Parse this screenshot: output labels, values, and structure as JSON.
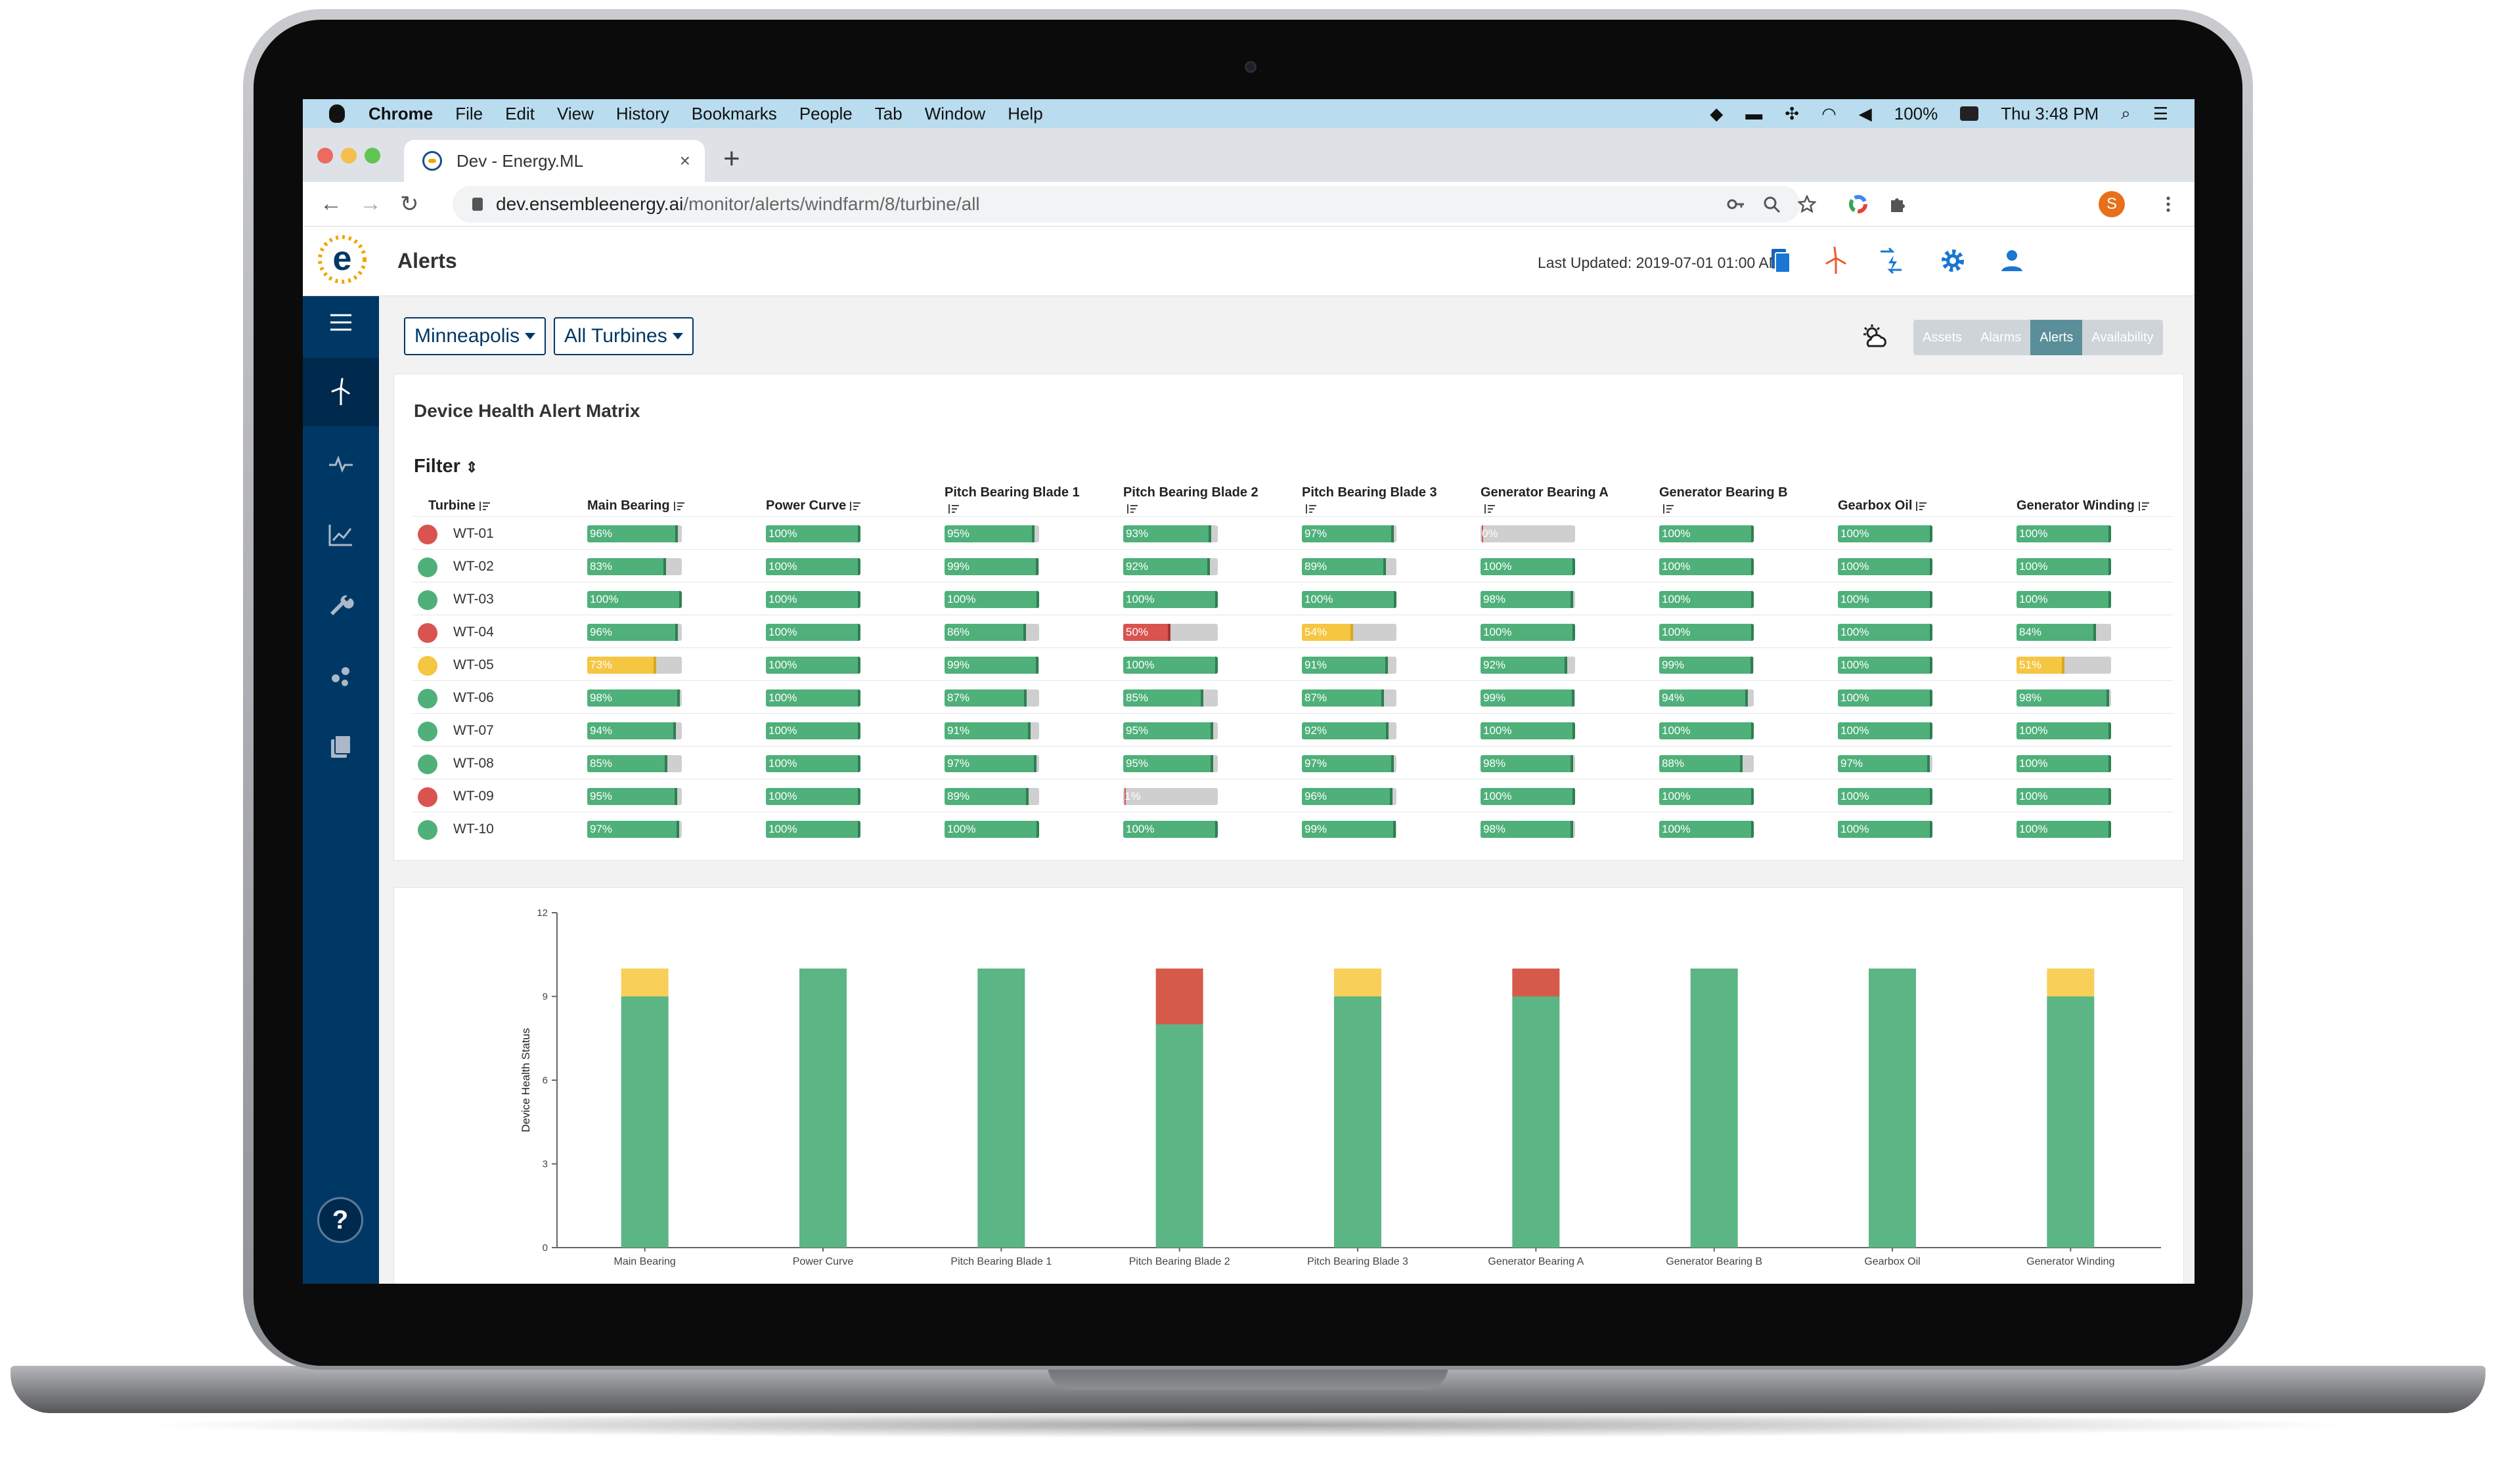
{
  "menubar": {
    "items": [
      {
        "label": "Chrome",
        "bold": true
      },
      {
        "label": "File"
      },
      {
        "label": "Edit"
      },
      {
        "label": "View"
      },
      {
        "label": "History"
      },
      {
        "label": "Bookmarks"
      },
      {
        "label": "People"
      },
      {
        "label": "Tab"
      },
      {
        "label": "Window"
      },
      {
        "label": "Help"
      }
    ],
    "battery": "100%",
    "clock": "Thu 3:48 PM"
  },
  "browser": {
    "tab_title": "Dev - Energy.ML",
    "tab_close": "×",
    "new_tab": "+",
    "url_host": "dev.ensembleenergy.ai",
    "url_path": "/monitor/alerts/windfarm/8/turbine/all",
    "profile_initial": "S",
    "nav_back": "←",
    "nav_forward": "→",
    "nav_reload": "↻"
  },
  "app": {
    "title": "Alerts",
    "last_updated": "Last Updated: 2019-07-01 01:00 AM",
    "location_dropdown": "Minneapolis",
    "turbine_dropdown": "All Turbines",
    "view_segments": [
      {
        "label": "Assets",
        "active": false
      },
      {
        "label": "Alarms",
        "active": false
      },
      {
        "label": "Alerts",
        "active": true
      },
      {
        "label": "Availability",
        "active": false
      }
    ],
    "help": "?"
  },
  "colors": {
    "good": "#4fb07a",
    "warning": "#f5c641",
    "critical": "#d9534f",
    "sidebar": "#003865",
    "chart_green": "#5cb585",
    "chart_yellow": "#f8cf58",
    "chart_red": "#d65a4a"
  },
  "matrix": {
    "title": "Device Health Alert Matrix",
    "filter_label": "Filter",
    "filter_icon": "sort-updown-icon",
    "turbine_header": "Turbine",
    "columns": [
      "Main Bearing",
      "Power Curve",
      "Pitch Bearing Blade 1",
      "Pitch Bearing Blade 2",
      "Pitch Bearing Blade 3",
      "Generator Bearing A",
      "Generator Bearing B",
      "Gearbox Oil",
      "Generator Winding"
    ],
    "rows": [
      {
        "turbine": "WT-01",
        "status": "critical",
        "values": [
          96,
          100,
          95,
          93,
          97,
          0,
          100,
          100,
          100
        ]
      },
      {
        "turbine": "WT-02",
        "status": "good",
        "values": [
          83,
          100,
          99,
          92,
          89,
          100,
          100,
          100,
          100
        ]
      },
      {
        "turbine": "WT-03",
        "status": "good",
        "values": [
          100,
          100,
          100,
          100,
          100,
          98,
          100,
          100,
          100
        ]
      },
      {
        "turbine": "WT-04",
        "status": "critical",
        "values": [
          96,
          100,
          86,
          50,
          54,
          100,
          100,
          100,
          84
        ]
      },
      {
        "turbine": "WT-05",
        "status": "warning",
        "values": [
          73,
          100,
          99,
          100,
          91,
          92,
          99,
          100,
          51
        ]
      },
      {
        "turbine": "WT-06",
        "status": "good",
        "values": [
          98,
          100,
          87,
          85,
          87,
          99,
          94,
          100,
          98
        ]
      },
      {
        "turbine": "WT-07",
        "status": "good",
        "values": [
          94,
          100,
          91,
          95,
          92,
          100,
          100,
          100,
          100
        ]
      },
      {
        "turbine": "WT-08",
        "status": "good",
        "values": [
          85,
          100,
          97,
          95,
          97,
          98,
          88,
          97,
          100
        ]
      },
      {
        "turbine": "WT-09",
        "status": "critical",
        "values": [
          95,
          100,
          89,
          1,
          96,
          100,
          100,
          100,
          100
        ]
      },
      {
        "turbine": "WT-10",
        "status": "good",
        "values": [
          97,
          100,
          100,
          100,
          99,
          98,
          100,
          100,
          100
        ]
      }
    ]
  },
  "chart_data": {
    "type": "bar",
    "stacked": true,
    "categories": [
      "Main Bearing",
      "Power Curve",
      "Pitch Bearing Blade 1",
      "Pitch Bearing Blade 2",
      "Pitch Bearing Blade 3",
      "Generator Bearing A",
      "Generator Bearing B",
      "Gearbox Oil",
      "Generator Winding"
    ],
    "series": [
      {
        "color": "#5cb585",
        "values": [
          9,
          10,
          10,
          8,
          9,
          9,
          10,
          10,
          9
        ]
      },
      {
        "color": "#f8cf58",
        "values": [
          1,
          0,
          0,
          0,
          1,
          0,
          0,
          0,
          1
        ]
      },
      {
        "color": "#d65a4a",
        "values": [
          0,
          0,
          0,
          2,
          0,
          1,
          0,
          0,
          0
        ]
      }
    ],
    "xlabel": "",
    "ylabel": "Device Health Status",
    "ylim": [
      0,
      12
    ],
    "yticks": [
      0,
      3,
      6,
      9,
      12
    ],
    "grid": false
  }
}
